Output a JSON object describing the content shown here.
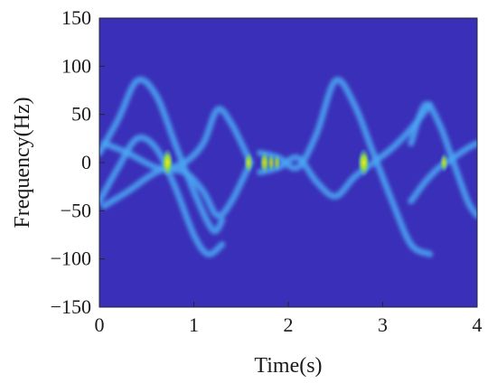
{
  "chart_data": {
    "type": "heatmap",
    "title": "",
    "xlabel": "Time(s)",
    "ylabel": "Frequency(Hz)",
    "xlim": [
      0,
      4
    ],
    "ylim": [
      -150,
      150
    ],
    "xticks": [
      0,
      1,
      2,
      3,
      4
    ],
    "xtick_labels": [
      "0",
      "1",
      "2",
      "3",
      "4"
    ],
    "yticks": [
      150,
      100,
      50,
      0,
      -50,
      -100,
      -150
    ],
    "ytick_labels": [
      "150",
      "100",
      "50",
      "0",
      "−50",
      "−100",
      "−150"
    ],
    "grid": false,
    "colormap": "parula",
    "background_color": "#3a2fb8",
    "ridge_color": "#4aa8f5",
    "hotspot_color": "#f2e21a",
    "ridges": [
      {
        "t": [
          0.0,
          0.2,
          0.4,
          0.6,
          0.8,
          1.0,
          1.2,
          1.3
        ],
        "f": [
          10,
          45,
          85,
          70,
          20,
          -30,
          -70,
          -60
        ]
      },
      {
        "t": [
          0.0,
          0.2,
          0.4,
          0.6,
          0.8,
          1.0,
          1.15,
          1.3
        ],
        "f": [
          -40,
          -5,
          25,
          15,
          -25,
          -75,
          -95,
          -85
        ]
      },
      {
        "t": [
          0.05,
          0.3,
          0.6,
          0.9,
          1.1,
          1.25,
          1.4,
          1.6
        ],
        "f": [
          -45,
          -30,
          -10,
          0,
          20,
          55,
          40,
          0
        ]
      },
      {
        "t": [
          0.05,
          0.3,
          0.6,
          0.9,
          1.1,
          1.25,
          1.4,
          1.6
        ],
        "f": [
          20,
          10,
          -5,
          -10,
          -30,
          -55,
          -40,
          0
        ]
      },
      {
        "t": [
          1.7,
          1.9,
          2.1,
          2.3,
          2.5,
          2.7,
          2.9,
          3.1,
          3.3,
          3.5
        ],
        "f": [
          10,
          5,
          -5,
          30,
          85,
          60,
          10,
          -40,
          -85,
          -95
        ]
      },
      {
        "t": [
          1.7,
          1.9,
          2.1,
          2.3,
          2.5,
          2.7,
          2.9,
          3.1,
          3.3,
          3.5
        ],
        "f": [
          -10,
          -5,
          5,
          -20,
          -35,
          -15,
          0,
          15,
          35,
          60
        ]
      },
      {
        "t": [
          3.3,
          3.45,
          3.6,
          3.75,
          3.9,
          4.0
        ],
        "f": [
          20,
          60,
          40,
          0,
          -40,
          -55
        ]
      },
      {
        "t": [
          3.3,
          3.45,
          3.6,
          3.75,
          3.9,
          4.0
        ],
        "f": [
          -40,
          -20,
          -5,
          5,
          15,
          20
        ]
      }
    ],
    "hotspots": [
      {
        "t": 0.72,
        "f": 0,
        "intensity": 1.0
      },
      {
        "t": 1.58,
        "f": 0,
        "intensity": 0.6
      },
      {
        "t": 1.75,
        "f": 0,
        "intensity": 0.7
      },
      {
        "t": 1.82,
        "f": 0,
        "intensity": 0.45
      },
      {
        "t": 1.88,
        "f": 0,
        "intensity": 0.35
      },
      {
        "t": 2.8,
        "f": 0,
        "intensity": 1.0
      },
      {
        "t": 3.65,
        "f": 0,
        "intensity": 0.5
      }
    ]
  }
}
